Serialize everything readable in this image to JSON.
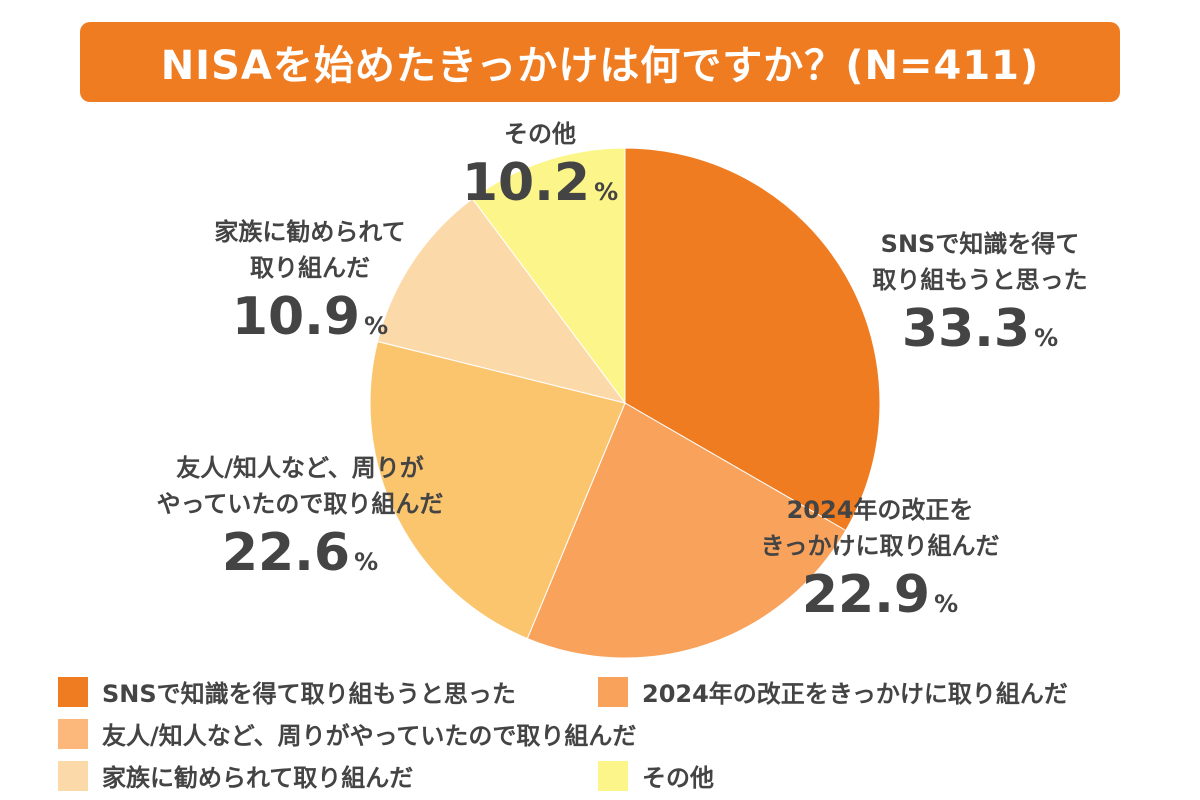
{
  "chart_data": {
    "type": "pie",
    "title": "NISAを始めたきっかけは何ですか？(N=411)",
    "unit": "%",
    "slices": [
      {
        "label": "SNSで知識を得て取り組もうと思った",
        "label_lines": [
          "SNSで知識を得て",
          "取り組もうと思った"
        ],
        "value": 33.3,
        "display": "33.3",
        "color": "#f07c22"
      },
      {
        "label": "2024年の改正をきっかけに取り組んだ",
        "label_lines": [
          "2024年の改正を",
          "きっかけに取り組んだ"
        ],
        "value": 22.9,
        "display": "22.9",
        "color": "#f9a25b"
      },
      {
        "label": "友人/知人など、周りがやっていたので取り組んだ",
        "label_lines": [
          "友人/知人など、周りが",
          "やっていたので取り組んだ"
        ],
        "value": 22.6,
        "display": "22.6",
        "color": "#fbc56d"
      },
      {
        "label": "家族に勧められて取り組んだ",
        "label_lines": [
          "家族に勧められて",
          "取り組んだ"
        ],
        "value": 10.9,
        "display": "10.9",
        "color": "#fcd9a9"
      },
      {
        "label": "その他",
        "label_lines": [
          "その他"
        ],
        "value": 10.2,
        "display": "10.2",
        "color": "#fcf68a"
      }
    ],
    "legend": {
      "placement": "bottom",
      "entries": [
        {
          "label": "SNSで知識を得て取り組もうと思った",
          "color": "#f07c22"
        },
        {
          "label": "2024年の改正をきっかけに取り組んだ",
          "color": "#f9a25b"
        },
        {
          "label": "友人/知人など、周りがやっていたので取り組んだ",
          "color": "#fbb87a"
        },
        {
          "label": "家族に勧められて取り組んだ",
          "color": "#fcd9a9"
        },
        {
          "label": "その他",
          "color": "#fcf68a"
        }
      ]
    }
  }
}
